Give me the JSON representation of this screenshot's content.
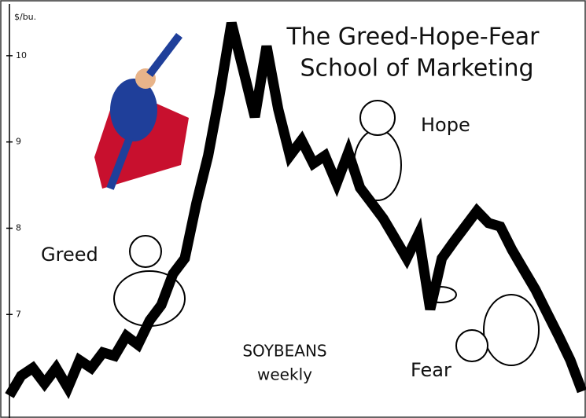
{
  "chart_data": {
    "type": "line",
    "title": "The Greed-Hope-Fear",
    "subtitle": "School of Marketing",
    "y_label": "$/bu.",
    "series_label": "SOYBEANS",
    "series_sublabel": "weekly",
    "annotations": [
      "Greed",
      "Hope",
      "Fear"
    ],
    "categories": [
      null,
      null,
      null,
      null,
      null,
      null,
      null,
      null,
      null,
      null,
      null,
      null,
      null,
      null,
      null,
      null,
      null,
      null,
      null,
      null,
      null,
      null,
      null,
      null,
      null,
      null,
      null,
      null,
      null,
      null,
      null,
      null,
      null,
      null,
      null,
      null,
      null,
      null,
      null,
      null,
      null,
      null,
      null,
      null,
      null,
      null,
      null,
      null,
      null,
      null
    ],
    "values": [
      6.06,
      6.29,
      6.38,
      6.2,
      6.38,
      6.15,
      6.47,
      6.38,
      6.56,
      6.52,
      6.75,
      6.65,
      6.93,
      7.11,
      7.47,
      7.65,
      8.29,
      8.84,
      9.56,
      10.38,
      9.84,
      9.29,
      10.11,
      9.38,
      8.84,
      9.02,
      8.75,
      8.84,
      8.52,
      8.88,
      8.47,
      8.29,
      8.11,
      7.88,
      7.65,
      7.93,
      7.06,
      7.65,
      7.84,
      8.02,
      8.2,
      8.06,
      8.02,
      7.75,
      7.52,
      7.29,
      7.02,
      6.75,
      6.47,
      6.11
    ],
    "color": "#000000",
    "ylim": [
      5.8,
      10.6
    ],
    "yticks": [
      7,
      8,
      9,
      10
    ]
  }
}
